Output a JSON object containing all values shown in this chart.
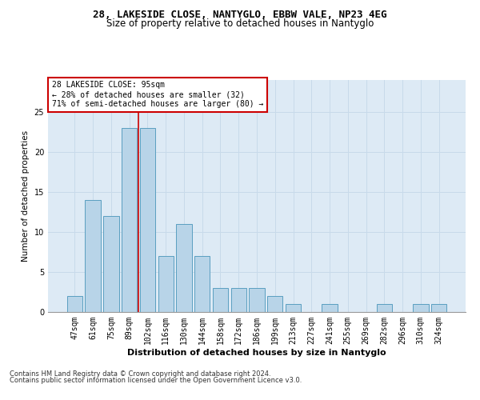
{
  "title1": "28, LAKESIDE CLOSE, NANTYGLO, EBBW VALE, NP23 4EG",
  "title2": "Size of property relative to detached houses in Nantyglo",
  "xlabel": "Distribution of detached houses by size in Nantyglo",
  "ylabel": "Number of detached properties",
  "categories": [
    "47sqm",
    "61sqm",
    "75sqm",
    "89sqm",
    "102sqm",
    "116sqm",
    "130sqm",
    "144sqm",
    "158sqm",
    "172sqm",
    "186sqm",
    "199sqm",
    "213sqm",
    "227sqm",
    "241sqm",
    "255sqm",
    "269sqm",
    "282sqm",
    "296sqm",
    "310sqm",
    "324sqm"
  ],
  "values": [
    2,
    14,
    12,
    23,
    23,
    7,
    11,
    7,
    3,
    3,
    3,
    2,
    1,
    0,
    1,
    0,
    0,
    1,
    0,
    1,
    1
  ],
  "bar_color": "#b8d4e8",
  "bar_edge_color": "#5a9fc0",
  "highlight_line_color": "#cc0000",
  "annotation_text": "28 LAKESIDE CLOSE: 95sqm\n← 28% of detached houses are smaller (32)\n71% of semi-detached houses are larger (80) →",
  "annotation_box_color": "#ffffff",
  "annotation_box_edge_color": "#cc0000",
  "ylim": [
    0,
    29
  ],
  "yticks": [
    0,
    5,
    10,
    15,
    20,
    25
  ],
  "grid_color": "#c8daea",
  "background_color": "#ddeaf5",
  "footer1": "Contains HM Land Registry data © Crown copyright and database right 2024.",
  "footer2": "Contains public sector information licensed under the Open Government Licence v3.0.",
  "title1_fontsize": 9,
  "title2_fontsize": 8.5,
  "tick_fontsize": 7,
  "ylabel_fontsize": 7.5,
  "xlabel_fontsize": 8,
  "annotation_fontsize": 7,
  "footer_fontsize": 6
}
